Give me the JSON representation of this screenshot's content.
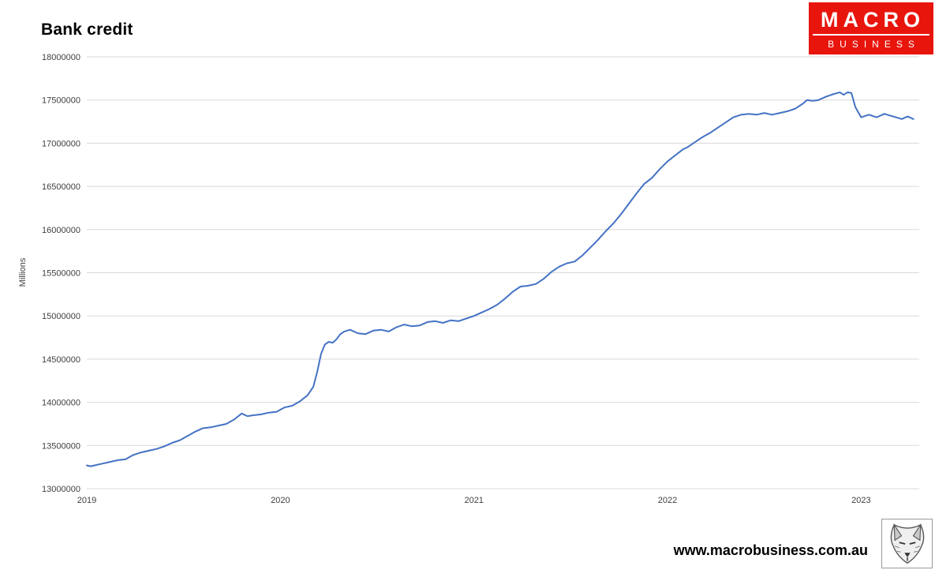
{
  "header": {
    "title": "Bank credit"
  },
  "logo": {
    "line1": "MACRO",
    "line2": "BUSINESS",
    "bg_color": "#e8150d",
    "text_color": "#ffffff"
  },
  "footer": {
    "url": "www.macrobusiness.com.au",
    "wolf_icon": "wolf-logo"
  },
  "chart_data": {
    "type": "line",
    "title": "Bank credit",
    "xlabel": "",
    "ylabel": "Millions",
    "legend": "none",
    "grid": "horizontal",
    "grid_color": "#d9d9d9",
    "series_color": "#4472c4",
    "xlim": [
      2019.0,
      2023.3
    ],
    "ylim": [
      13000000,
      18000000
    ],
    "x_ticks": [
      2019,
      2020,
      2021,
      2022,
      2023
    ],
    "y_ticks": [
      13000000,
      13500000,
      14000000,
      14500000,
      15000000,
      15500000,
      16000000,
      16500000,
      17000000,
      17500000,
      18000000
    ],
    "series": [
      {
        "name": "Bank credit",
        "points": [
          [
            2019.0,
            13270000
          ],
          [
            2019.02,
            13260000
          ],
          [
            2019.04,
            13270000
          ],
          [
            2019.08,
            13290000
          ],
          [
            2019.12,
            13310000
          ],
          [
            2019.16,
            13330000
          ],
          [
            2019.2,
            13340000
          ],
          [
            2019.24,
            13390000
          ],
          [
            2019.28,
            13420000
          ],
          [
            2019.32,
            13440000
          ],
          [
            2019.36,
            13460000
          ],
          [
            2019.4,
            13490000
          ],
          [
            2019.44,
            13530000
          ],
          [
            2019.48,
            13560000
          ],
          [
            2019.52,
            13610000
          ],
          [
            2019.56,
            13660000
          ],
          [
            2019.6,
            13700000
          ],
          [
            2019.64,
            13710000
          ],
          [
            2019.68,
            13730000
          ],
          [
            2019.72,
            13750000
          ],
          [
            2019.76,
            13800000
          ],
          [
            2019.8,
            13870000
          ],
          [
            2019.83,
            13840000
          ],
          [
            2019.86,
            13850000
          ],
          [
            2019.9,
            13860000
          ],
          [
            2019.94,
            13880000
          ],
          [
            2019.98,
            13890000
          ],
          [
            2020.02,
            13940000
          ],
          [
            2020.06,
            13960000
          ],
          [
            2020.1,
            14010000
          ],
          [
            2020.14,
            14080000
          ],
          [
            2020.17,
            14180000
          ],
          [
            2020.19,
            14350000
          ],
          [
            2020.21,
            14560000
          ],
          [
            2020.23,
            14670000
          ],
          [
            2020.25,
            14700000
          ],
          [
            2020.27,
            14690000
          ],
          [
            2020.29,
            14730000
          ],
          [
            2020.31,
            14790000
          ],
          [
            2020.33,
            14820000
          ],
          [
            2020.36,
            14840000
          ],
          [
            2020.4,
            14800000
          ],
          [
            2020.44,
            14790000
          ],
          [
            2020.48,
            14830000
          ],
          [
            2020.52,
            14840000
          ],
          [
            2020.56,
            14820000
          ],
          [
            2020.6,
            14870000
          ],
          [
            2020.64,
            14900000
          ],
          [
            2020.68,
            14880000
          ],
          [
            2020.72,
            14890000
          ],
          [
            2020.76,
            14930000
          ],
          [
            2020.8,
            14940000
          ],
          [
            2020.84,
            14920000
          ],
          [
            2020.88,
            14950000
          ],
          [
            2020.92,
            14940000
          ],
          [
            2020.96,
            14970000
          ],
          [
            2021.0,
            15000000
          ],
          [
            2021.04,
            15040000
          ],
          [
            2021.08,
            15080000
          ],
          [
            2021.12,
            15130000
          ],
          [
            2021.16,
            15200000
          ],
          [
            2021.2,
            15280000
          ],
          [
            2021.24,
            15340000
          ],
          [
            2021.28,
            15350000
          ],
          [
            2021.32,
            15370000
          ],
          [
            2021.36,
            15430000
          ],
          [
            2021.4,
            15510000
          ],
          [
            2021.44,
            15570000
          ],
          [
            2021.48,
            15610000
          ],
          [
            2021.52,
            15630000
          ],
          [
            2021.56,
            15700000
          ],
          [
            2021.6,
            15790000
          ],
          [
            2021.64,
            15880000
          ],
          [
            2021.68,
            15980000
          ],
          [
            2021.72,
            16070000
          ],
          [
            2021.76,
            16180000
          ],
          [
            2021.8,
            16300000
          ],
          [
            2021.84,
            16420000
          ],
          [
            2021.88,
            16530000
          ],
          [
            2021.92,
            16600000
          ],
          [
            2021.96,
            16700000
          ],
          [
            2022.0,
            16790000
          ],
          [
            2022.04,
            16860000
          ],
          [
            2022.08,
            16930000
          ],
          [
            2022.1,
            16950000
          ],
          [
            2022.14,
            17010000
          ],
          [
            2022.18,
            17070000
          ],
          [
            2022.22,
            17120000
          ],
          [
            2022.26,
            17180000
          ],
          [
            2022.3,
            17240000
          ],
          [
            2022.34,
            17300000
          ],
          [
            2022.38,
            17330000
          ],
          [
            2022.42,
            17340000
          ],
          [
            2022.46,
            17330000
          ],
          [
            2022.5,
            17350000
          ],
          [
            2022.54,
            17330000
          ],
          [
            2022.58,
            17350000
          ],
          [
            2022.62,
            17370000
          ],
          [
            2022.66,
            17400000
          ],
          [
            2022.7,
            17460000
          ],
          [
            2022.72,
            17500000
          ],
          [
            2022.75,
            17490000
          ],
          [
            2022.78,
            17500000
          ],
          [
            2022.82,
            17540000
          ],
          [
            2022.86,
            17570000
          ],
          [
            2022.89,
            17590000
          ],
          [
            2022.91,
            17560000
          ],
          [
            2022.93,
            17590000
          ],
          [
            2022.95,
            17580000
          ],
          [
            2022.97,
            17420000
          ],
          [
            2023.0,
            17300000
          ],
          [
            2023.04,
            17330000
          ],
          [
            2023.08,
            17300000
          ],
          [
            2023.12,
            17340000
          ],
          [
            2023.15,
            17320000
          ],
          [
            2023.18,
            17300000
          ],
          [
            2023.21,
            17280000
          ],
          [
            2023.24,
            17310000
          ],
          [
            2023.27,
            17280000
          ]
        ]
      }
    ]
  }
}
